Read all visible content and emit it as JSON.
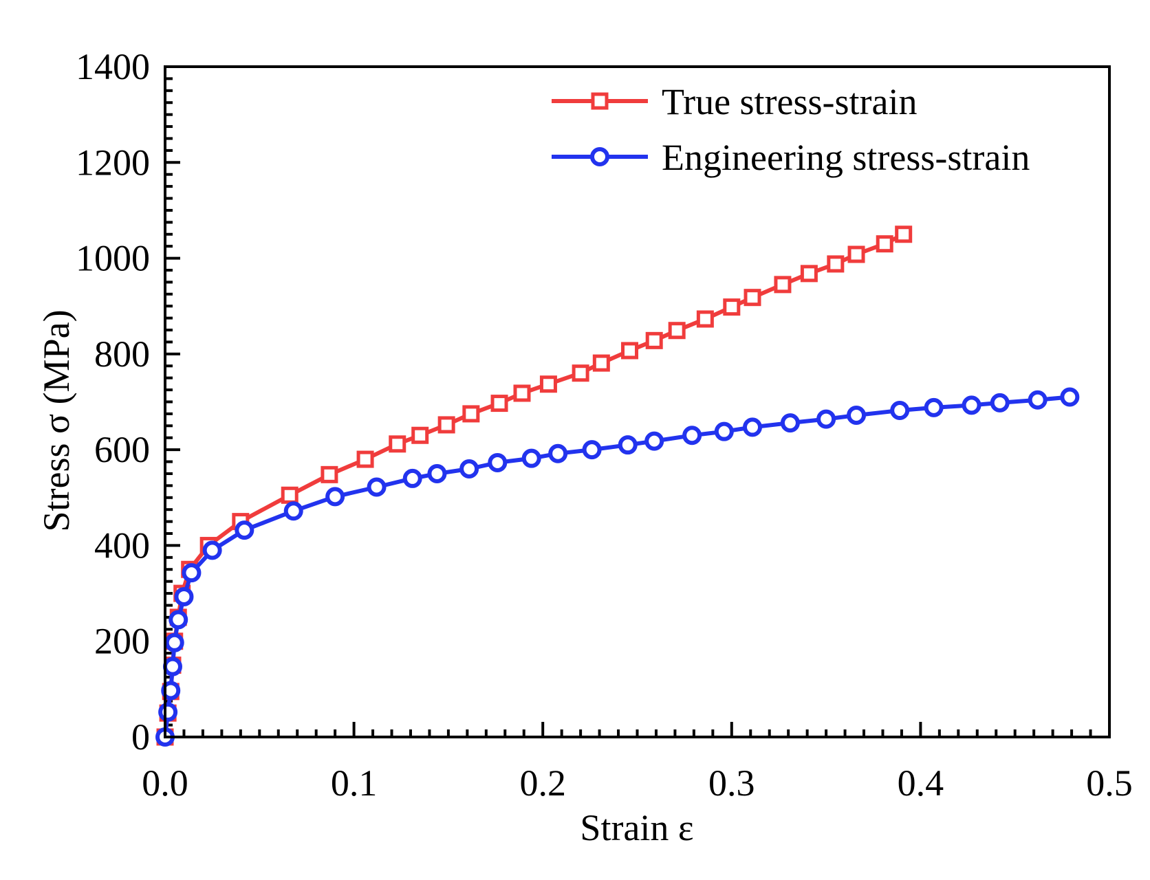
{
  "chart_data": {
    "type": "line",
    "title": "",
    "xlabel": "Strain ε",
    "ylabel": "Stress σ (MPa)",
    "xlim": [
      0.0,
      0.5
    ],
    "ylim": [
      0,
      1400
    ],
    "xticks": [
      "0.0",
      "0.1",
      "0.2",
      "0.3",
      "0.4",
      "0.5"
    ],
    "yticks": [
      "0",
      "200",
      "400",
      "600",
      "800",
      "1000",
      "1200",
      "1400"
    ],
    "grid": false,
    "legend_position": "top-right",
    "series": [
      {
        "name": "True stress-strain",
        "color": "#f03c3c",
        "marker": "square",
        "x": [
          0.0,
          0.0015,
          0.003,
          0.004,
          0.005,
          0.007,
          0.009,
          0.013,
          0.023,
          0.04,
          0.066,
          0.087,
          0.106,
          0.123,
          0.135,
          0.149,
          0.162,
          0.177,
          0.189,
          0.203,
          0.22,
          0.231,
          0.246,
          0.259,
          0.271,
          0.286,
          0.3,
          0.311,
          0.327,
          0.341,
          0.355,
          0.366,
          0.381,
          0.391
        ],
        "y": [
          0,
          50,
          95,
          150,
          200,
          250,
          300,
          350,
          400,
          450,
          505,
          548,
          580,
          612,
          630,
          652,
          675,
          697,
          718,
          737,
          760,
          781,
          807,
          828,
          849,
          873,
          898,
          918,
          945,
          968,
          988,
          1008,
          1030,
          1050
        ]
      },
      {
        "name": "Engineering stress-strain",
        "color": "#2233ee",
        "marker": "circle",
        "x": [
          0.0,
          0.0015,
          0.003,
          0.004,
          0.005,
          0.007,
          0.01,
          0.014,
          0.025,
          0.042,
          0.068,
          0.09,
          0.112,
          0.131,
          0.144,
          0.161,
          0.176,
          0.194,
          0.208,
          0.226,
          0.245,
          0.259,
          0.279,
          0.296,
          0.311,
          0.331,
          0.35,
          0.366,
          0.389,
          0.407,
          0.427,
          0.442,
          0.462,
          0.479
        ],
        "y": [
          0,
          52,
          97,
          147,
          197,
          245,
          293,
          343,
          390,
          432,
          472,
          502,
          522,
          540,
          550,
          560,
          573,
          582,
          592,
          600,
          610,
          618,
          630,
          638,
          647,
          656,
          664,
          672,
          682,
          688,
          693,
          698,
          704,
          710
        ]
      }
    ]
  }
}
